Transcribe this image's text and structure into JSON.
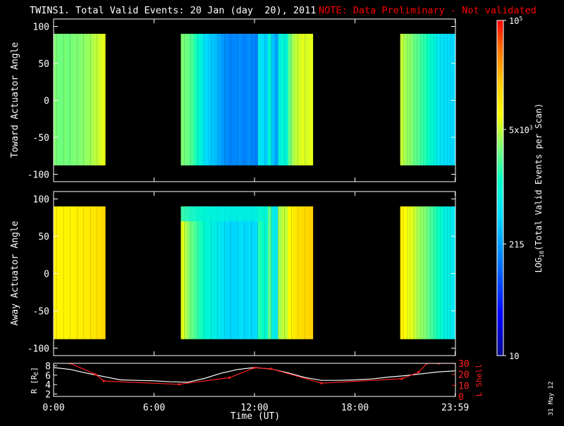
{
  "header": {
    "title": "TWINS1. Total Valid Events: 20 Jan (day  20), 2011",
    "note": "NOTE: Data Preliminary - Not validated"
  },
  "stamp": "31 May 12",
  "colors": {
    "background": "#000000",
    "foreground": "#ffffff",
    "note": "#ff0000",
    "lshell": "#ff2020"
  },
  "colorbar": {
    "label": "LOG10(Total Valid Events per Scan)",
    "label_main": "LOG",
    "label_sub": "10",
    "label_rest": "(Total Valid Events per Scan)",
    "scale": "log",
    "range": [
      10,
      100000
    ],
    "ticks": [
      {
        "value": 100000,
        "base": "10",
        "exp": "5"
      },
      {
        "value": 5000,
        "base": "5x10",
        "exp": "3"
      },
      {
        "value": 215,
        "base": "215",
        "exp": ""
      },
      {
        "value": 10,
        "base": "10",
        "exp": ""
      }
    ]
  },
  "chart_data": [
    {
      "type": "heatmap",
      "panel": "toward",
      "ylabel": "Toward Actuator Angle",
      "xlim": [
        0,
        24
      ],
      "ylim": [
        -110,
        110
      ],
      "yticks": [
        100,
        50,
        0,
        -50,
        -100
      ],
      "data_y_range": [
        -88,
        90
      ],
      "coverage_hours": [
        [
          0,
          3.1
        ],
        [
          7.6,
          15.5
        ],
        [
          20.7,
          24
        ]
      ],
      "columns_x": [
        0.1,
        0.3,
        0.5,
        0.7,
        0.9,
        1.1,
        1.3,
        1.5,
        1.7,
        1.9,
        2.1,
        2.3,
        2.5,
        2.7,
        2.9,
        7.7,
        7.9,
        8.1,
        8.3,
        8.5,
        8.7,
        8.9,
        9.1,
        9.3,
        9.5,
        9.7,
        9.9,
        10.1,
        10.3,
        10.5,
        10.7,
        10.9,
        11.1,
        11.3,
        11.5,
        11.7,
        11.9,
        12.1,
        12.3,
        12.5,
        12.7,
        12.9,
        13.1,
        13.3,
        13.5,
        13.7,
        13.9,
        14.1,
        14.3,
        14.5,
        14.7,
        14.9,
        15.1,
        15.3,
        20.8,
        21.0,
        21.2,
        21.4,
        21.6,
        21.8,
        22.0,
        22.2,
        22.4,
        22.6,
        22.8,
        23.0,
        23.2,
        23.4,
        23.6,
        23.8
      ],
      "columns_log10": [
        3.5,
        3.45,
        3.45,
        3.48,
        3.45,
        3.48,
        3.5,
        3.5,
        3.52,
        3.55,
        3.58,
        3.62,
        3.68,
        3.72,
        3.8,
        3.5,
        3.45,
        3.4,
        3.3,
        3.15,
        3.0,
        2.85,
        2.7,
        2.6,
        2.55,
        2.5,
        2.4,
        2.3,
        2.25,
        2.2,
        2.2,
        2.2,
        2.25,
        2.2,
        2.2,
        2.25,
        2.2,
        2.15,
        2.8,
        2.7,
        2.6,
        3.0,
        2.55,
        2.35,
        2.9,
        3.0,
        2.95,
        3.4,
        3.6,
        3.7,
        3.75,
        3.8,
        3.75,
        3.8,
        3.7,
        3.6,
        3.55,
        3.5,
        3.4,
        3.35,
        3.25,
        3.2,
        3.1,
        3.0,
        2.9,
        2.8,
        2.75,
        2.7,
        2.7,
        2.65
      ]
    },
    {
      "type": "heatmap",
      "panel": "away",
      "ylabel": "Away Actuator Angle",
      "xlim": [
        0,
        24
      ],
      "ylim": [
        -110,
        110
      ],
      "yticks": [
        100,
        50,
        0,
        -50,
        -100
      ],
      "data_y_range": [
        -88,
        90
      ],
      "coverage_hours": [
        [
          0,
          3.1
        ],
        [
          7.6,
          15.5
        ],
        [
          20.7,
          24
        ]
      ],
      "columns_x": [
        0.1,
        0.3,
        0.5,
        0.7,
        0.9,
        1.1,
        1.3,
        1.5,
        1.7,
        1.9,
        2.1,
        2.3,
        2.5,
        2.7,
        2.9,
        7.7,
        7.9,
        8.1,
        8.3,
        8.5,
        8.7,
        8.9,
        9.1,
        9.3,
        9.5,
        9.7,
        9.9,
        10.1,
        10.3,
        10.5,
        10.7,
        10.9,
        11.1,
        11.3,
        11.5,
        11.7,
        11.9,
        12.1,
        12.3,
        12.5,
        12.7,
        12.9,
        13.1,
        13.3,
        13.5,
        13.7,
        13.9,
        14.1,
        14.3,
        14.5,
        14.7,
        14.9,
        15.1,
        15.3,
        20.8,
        21.0,
        21.2,
        21.4,
        21.6,
        21.8,
        22.0,
        22.2,
        22.4,
        22.6,
        22.8,
        23.0,
        23.2,
        23.4,
        23.6,
        23.8
      ],
      "columns_log10": [
        4.0,
        3.95,
        3.95,
        3.95,
        3.95,
        3.95,
        3.98,
        4.0,
        4.0,
        4.0,
        4.02,
        4.05,
        4.05,
        4.1,
        4.15,
        3.8,
        3.65,
        3.5,
        3.4,
        3.3,
        3.2,
        3.1,
        3.0,
        2.95,
        2.9,
        2.85,
        2.8,
        2.75,
        2.7,
        2.65,
        2.65,
        2.65,
        2.7,
        2.7,
        2.65,
        2.7,
        2.65,
        2.7,
        3.2,
        3.1,
        3.0,
        3.4,
        2.9,
        2.8,
        3.6,
        3.7,
        3.7,
        3.9,
        4.0,
        4.05,
        4.1,
        4.15,
        4.15,
        4.2,
        4.0,
        3.9,
        3.8,
        3.8,
        3.7,
        3.6,
        3.55,
        3.5,
        3.4,
        3.3,
        3.2,
        3.1,
        3.0,
        2.9,
        2.9,
        2.8
      ],
      "top_band": {
        "y_range": [
          70,
          90
        ],
        "x_range": [
          7.6,
          12.8
        ],
        "log10": 2.95
      }
    },
    {
      "type": "line",
      "panel": "orbit",
      "ylabel_left": "R [RE]",
      "ylabel_right": "L Shell",
      "xlabel": "Time (UT)",
      "xlim": [
        0,
        24
      ],
      "xtick_labels": [
        {
          "x": 0,
          "label": "0:00"
        },
        {
          "x": 6,
          "label": "6:00"
        },
        {
          "x": 12,
          "label": "12:00"
        },
        {
          "x": 18,
          "label": "18:00"
        },
        {
          "x": 23.983,
          "label": "23:59"
        }
      ],
      "ylim_left": [
        1.5,
        8.5
      ],
      "yticks_left": [
        2,
        4,
        6,
        8
      ],
      "ylim_right": [
        0,
        30
      ],
      "yticks_right": [
        0,
        10,
        20,
        30
      ],
      "series": [
        {
          "name": "R",
          "axis": "left",
          "color": "#ffffff",
          "x": [
            0,
            1,
            2,
            3,
            4,
            5,
            6,
            7,
            8,
            9,
            10,
            11,
            12,
            13,
            14,
            15,
            16,
            17,
            18,
            19,
            20,
            21,
            22,
            23,
            24
          ],
          "y": [
            7.6,
            7.2,
            6.4,
            5.7,
            5.0,
            4.9,
            4.8,
            4.6,
            4.5,
            5.3,
            6.4,
            7.2,
            7.6,
            7.3,
            6.5,
            5.5,
            4.9,
            4.9,
            5.0,
            5.2,
            5.6,
            5.9,
            6.3,
            6.7,
            6.9
          ]
        },
        {
          "name": "L",
          "axis": "right",
          "color": "#ff2020",
          "x": [
            1.0,
            2.5,
            3.0,
            7.5,
            10.5,
            12.0,
            13.0,
            16.0,
            20.8,
            21.8,
            22.3,
            23.0,
            24.0
          ],
          "y": [
            30,
            20,
            14,
            11,
            17,
            26,
            25,
            12,
            16,
            22,
            30,
            30,
            30
          ]
        }
      ]
    }
  ]
}
